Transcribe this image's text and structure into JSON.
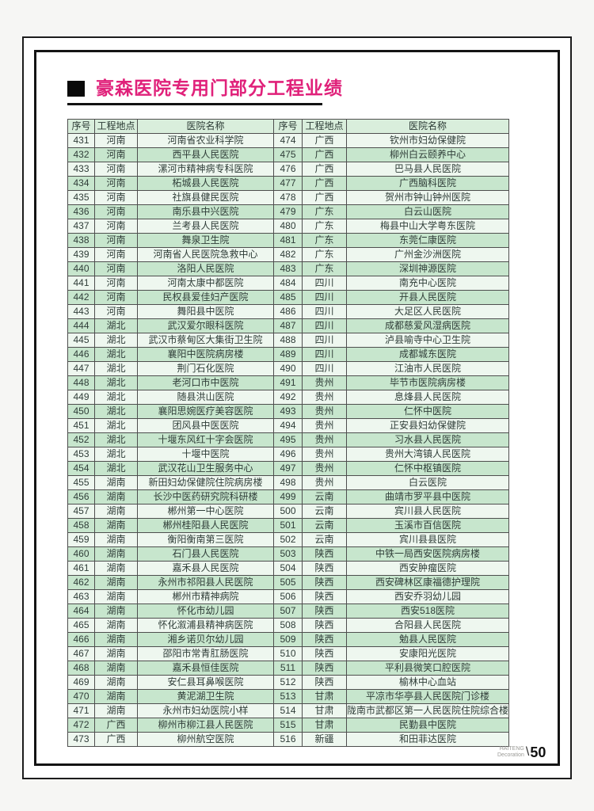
{
  "page": {
    "title": "豪森医院专用门部分工程业绩",
    "footer": {
      "brand_top": "HAITENG",
      "brand_bottom": "Decoration",
      "slash": "\\",
      "page_number": "50"
    }
  },
  "colors": {
    "title": "#e0217a",
    "header_bg": "#d9eedc",
    "row_green": "#c7e6cd",
    "row_light": "#eef7ef",
    "table_border": "#4e4e4e"
  },
  "table": {
    "headers": [
      "序号",
      "工程地点",
      "医院名称"
    ],
    "left_rows": [
      [
        "431",
        "河南",
        "河南省农业科学院"
      ],
      [
        "432",
        "河南",
        "西平县人民医院"
      ],
      [
        "433",
        "河南",
        "漯河市精神病专科医院"
      ],
      [
        "434",
        "河南",
        "柘城县人民医院"
      ],
      [
        "435",
        "河南",
        "社旗县健民医院"
      ],
      [
        "436",
        "河南",
        "南乐县中兴医院"
      ],
      [
        "437",
        "河南",
        "兰考县人民医院"
      ],
      [
        "438",
        "河南",
        "舞泉卫生院"
      ],
      [
        "439",
        "河南",
        "河南省人民医院急救中心"
      ],
      [
        "440",
        "河南",
        "洛阳人民医院"
      ],
      [
        "441",
        "河南",
        "河南太康中都医院"
      ],
      [
        "442",
        "河南",
        "民权县爱佳妇产医院"
      ],
      [
        "443",
        "河南",
        "舞阳县中医院"
      ],
      [
        "444",
        "湖北",
        "武汉爱尔眼科医院"
      ],
      [
        "445",
        "湖北",
        "武汉市蔡甸区大集街卫生院"
      ],
      [
        "446",
        "湖北",
        "襄阳中医院病房楼"
      ],
      [
        "447",
        "湖北",
        "荆门石化医院"
      ],
      [
        "448",
        "湖北",
        "老河口市中医院"
      ],
      [
        "449",
        "湖北",
        "随县洪山医院"
      ],
      [
        "450",
        "湖北",
        "襄阳思婉医疗美容医院"
      ],
      [
        "451",
        "湖北",
        "团风县中医医院"
      ],
      [
        "452",
        "湖北",
        "十堰东风红十字会医院"
      ],
      [
        "453",
        "湖北",
        "十堰中医院"
      ],
      [
        "454",
        "湖北",
        "武汉花山卫生服务中心"
      ],
      [
        "455",
        "湖南",
        "新田妇幼保健院住院病房楼"
      ],
      [
        "456",
        "湖南",
        "长沙中医药研究院科研楼"
      ],
      [
        "457",
        "湖南",
        "郴州第一中心医院"
      ],
      [
        "458",
        "湖南",
        "郴州桂阳县人民医院"
      ],
      [
        "459",
        "湖南",
        "衡阳衡南第三医院"
      ],
      [
        "460",
        "湖南",
        "石门县人民医院"
      ],
      [
        "461",
        "湖南",
        "嘉禾县人民医院"
      ],
      [
        "462",
        "湖南",
        "永州市祁阳县人民医院"
      ],
      [
        "463",
        "湖南",
        "郴州市精神病院"
      ],
      [
        "464",
        "湖南",
        "怀化市幼儿园"
      ],
      [
        "465",
        "湖南",
        "怀化溆浦县精神病医院"
      ],
      [
        "466",
        "湖南",
        "湘乡诺贝尔幼儿园"
      ],
      [
        "467",
        "湖南",
        "邵阳市常青肛肠医院"
      ],
      [
        "468",
        "湖南",
        "嘉禾县恒佳医院"
      ],
      [
        "469",
        "湖南",
        "安仁县耳鼻喉医院"
      ],
      [
        "470",
        "湖南",
        "黄泥湖卫生院"
      ],
      [
        "471",
        "湖南",
        "永州市妇幼医院小样"
      ],
      [
        "472",
        "广西",
        "柳州市柳江县人民医院"
      ],
      [
        "473",
        "广西",
        "柳州航空医院"
      ]
    ],
    "right_rows": [
      [
        "474",
        "广西",
        "钦州市妇幼保健院"
      ],
      [
        "475",
        "广西",
        "柳州白云颐养中心"
      ],
      [
        "476",
        "广西",
        "巴马县人民医院"
      ],
      [
        "477",
        "广西",
        "广西脑科医院"
      ],
      [
        "478",
        "广西",
        "贺州市钟山钟州医院"
      ],
      [
        "479",
        "广东",
        "白云山医院"
      ],
      [
        "480",
        "广东",
        "梅县中山大学粤东医院"
      ],
      [
        "481",
        "广东",
        "东莞仁康医院"
      ],
      [
        "482",
        "广东",
        "广州金沙洲医院"
      ],
      [
        "483",
        "广东",
        "深圳神源医院"
      ],
      [
        "484",
        "四川",
        "南充中心医院"
      ],
      [
        "485",
        "四川",
        "开县人民医院"
      ],
      [
        "486",
        "四川",
        "大足区人民医院"
      ],
      [
        "487",
        "四川",
        "成都慈爱风湿病医院"
      ],
      [
        "488",
        "四川",
        "泸县喻寺中心卫生院"
      ],
      [
        "489",
        "四川",
        "成都城东医院"
      ],
      [
        "490",
        "四川",
        "江油市人民医院"
      ],
      [
        "491",
        "贵州",
        "毕节市医院病房楼"
      ],
      [
        "492",
        "贵州",
        "息烽县人民医院"
      ],
      [
        "493",
        "贵州",
        "仁怀中医院"
      ],
      [
        "494",
        "贵州",
        "正安县妇幼保健院"
      ],
      [
        "495",
        "贵州",
        "习水县人民医院"
      ],
      [
        "496",
        "贵州",
        "贵州大湾镇人民医院"
      ],
      [
        "497",
        "贵州",
        "仁怀中枢镇医院"
      ],
      [
        "498",
        "贵州",
        "白云医院"
      ],
      [
        "499",
        "云南",
        "曲靖市罗平县中医院"
      ],
      [
        "500",
        "云南",
        "宾川县人民医院"
      ],
      [
        "501",
        "云南",
        "玉溪市百信医院"
      ],
      [
        "502",
        "云南",
        "宾川县县医院"
      ],
      [
        "503",
        "陕西",
        "中铁一局西安医院病房楼"
      ],
      [
        "504",
        "陕西",
        "西安肿瘤医院"
      ],
      [
        "505",
        "陕西",
        "西安碑林区康福德护理院"
      ],
      [
        "506",
        "陕西",
        "西安乔羽幼儿园"
      ],
      [
        "507",
        "陕西",
        "西安518医院"
      ],
      [
        "508",
        "陕西",
        "合阳县人民医院"
      ],
      [
        "509",
        "陕西",
        "勉县人民医院"
      ],
      [
        "510",
        "陕西",
        "安康阳光医院"
      ],
      [
        "511",
        "陕西",
        "平利县微笑口腔医院"
      ],
      [
        "512",
        "陕西",
        "榆林中心血站"
      ],
      [
        "513",
        "甘肃",
        "平凉市华亭县人民医院门诊楼"
      ],
      [
        "514",
        "甘肃",
        "陇南市武都区第一人民医院住院综合楼"
      ],
      [
        "515",
        "甘肃",
        "民勤县中医院"
      ],
      [
        "516",
        "新疆",
        "和田菲达医院"
      ]
    ]
  }
}
